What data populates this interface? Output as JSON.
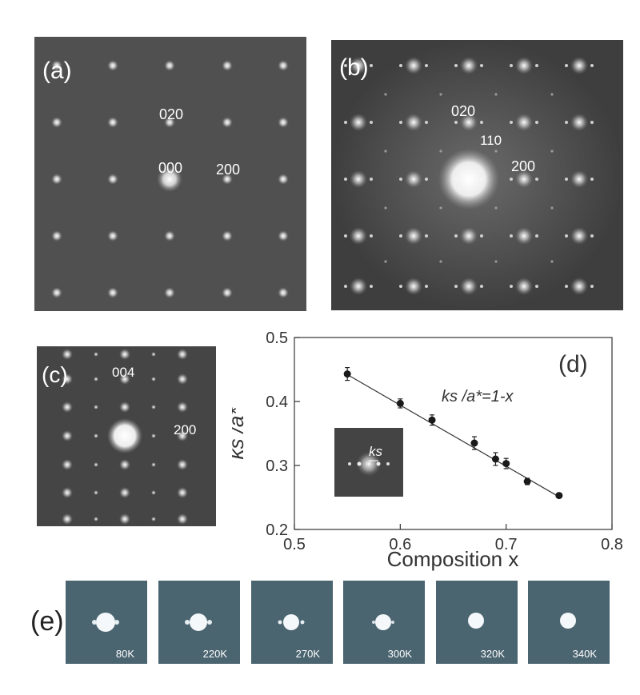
{
  "panels": {
    "a": {
      "tag": "(a)",
      "spots": [
        "020",
        "000",
        "200"
      ]
    },
    "b": {
      "tag": "(b)",
      "spots": [
        "020",
        "110",
        "200"
      ]
    },
    "c": {
      "tag": "(c)",
      "spots": [
        "004",
        "200"
      ]
    },
    "e": {
      "tag": "(e)",
      "temperatures": [
        "80K",
        "220K",
        "270K",
        "300K",
        "320K",
        "340K"
      ]
    }
  },
  "chart_data": {
    "type": "scatter",
    "panel_tag": "(d)",
    "xlabel": "Composition x",
    "ylabel": "ks /a*",
    "xlim": [
      0.5,
      0.8
    ],
    "ylim": [
      0.2,
      0.5
    ],
    "xticks": [
      "0.5",
      "0.6",
      "0.7",
      "0.8"
    ],
    "yticks": [
      "0.2",
      "0.3",
      "0.4",
      "0.5"
    ],
    "annotation": "ks /a*=1-x",
    "inset_label": "ks",
    "series": [
      {
        "x": [
          0.55,
          0.6,
          0.63,
          0.67,
          0.69,
          0.7,
          0.72,
          0.75
        ],
        "y": [
          0.443,
          0.397,
          0.371,
          0.335,
          0.31,
          0.303,
          0.275,
          0.253
        ],
        "err": [
          0.01,
          0.007,
          0.008,
          0.01,
          0.01,
          0.008,
          0.005,
          0.003
        ]
      }
    ],
    "fit_line": {
      "x": [
        0.55,
        0.75
      ],
      "y": [
        0.442,
        0.251
      ]
    }
  }
}
